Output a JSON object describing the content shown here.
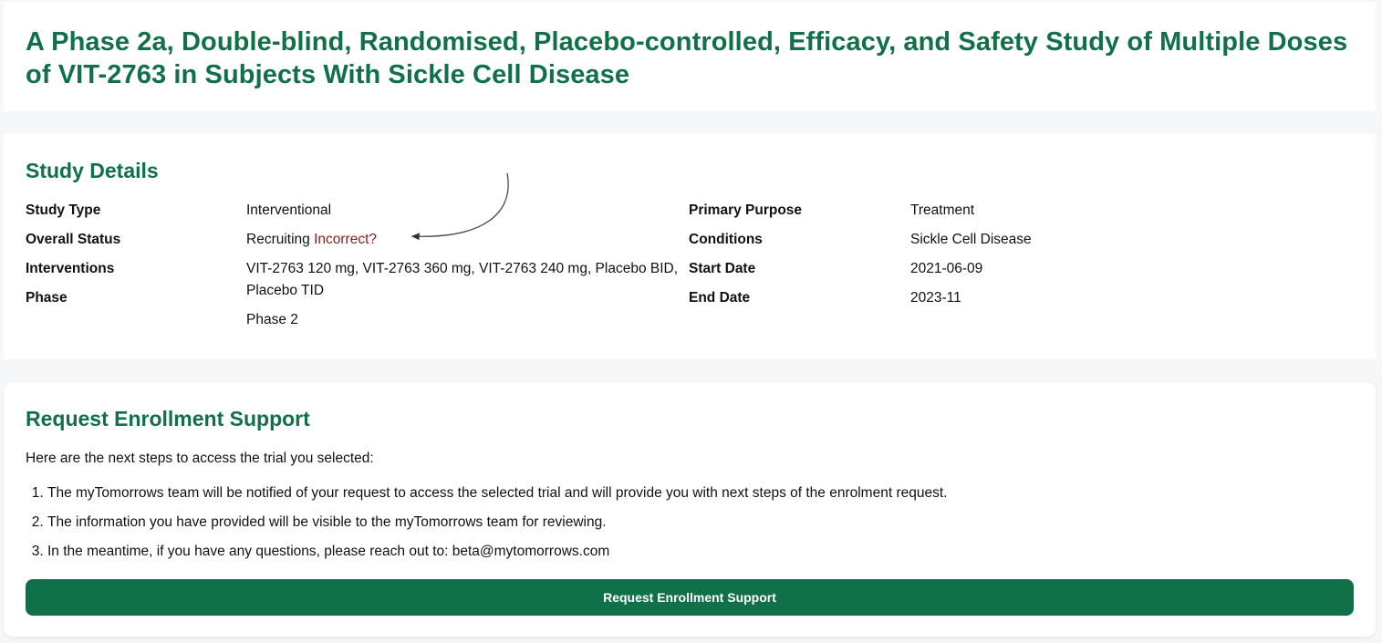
{
  "title": "A Phase 2a, Double-blind, Randomised, Placebo-controlled, Efficacy, and Safety Study of Multiple Doses of VIT-2763 in Subjects With Sickle Cell Disease",
  "study_details": {
    "heading": "Study Details",
    "left": {
      "study_type_label": "Study Type",
      "study_type_value": "Interventional",
      "overall_status_label": "Overall Status",
      "overall_status_value": "Recruiting",
      "incorrect_link": "Incorrect?",
      "interventions_label": "Interventions",
      "interventions_value": "VIT-2763 120 mg, VIT-2763 360 mg, VIT-2763 240 mg, Placebo BID, Placebo TID",
      "phase_label": "Phase",
      "phase_value": "Phase 2"
    },
    "right": {
      "primary_purpose_label": "Primary Purpose",
      "primary_purpose_value": "Treatment",
      "conditions_label": "Conditions",
      "conditions_value": "Sickle Cell Disease",
      "start_date_label": "Start Date",
      "start_date_value": "2021-06-09",
      "end_date_label": "End Date",
      "end_date_value": "2023-11"
    }
  },
  "enrollment": {
    "heading": "Request Enrollment Support",
    "intro": "Here are the next steps to access the trial you selected:",
    "steps": [
      "The myTomorrows team will be notified of your request to access the selected trial and will provide you with next steps of the enrolment request.",
      "The information you have provided will be visible to the myTomorrows team for reviewing.",
      "In the meantime, if you have any questions, please reach out to: beta@mytomorrows.com"
    ],
    "button_label": "Request Enrollment Support"
  },
  "colors": {
    "brand_green": "#10704a",
    "link_red": "#8b1a1a"
  }
}
